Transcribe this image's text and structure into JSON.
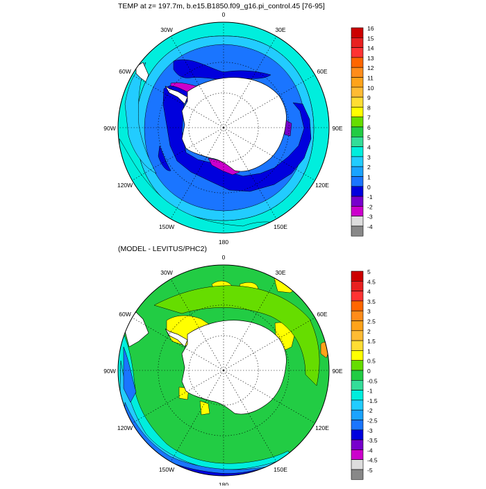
{
  "panel1": {
    "title": "TEMP at z= 197.7m, b.e15.B1850.f09_g16.pi_control.45 [76-95]",
    "lon_labels": [
      {
        "deg": 0,
        "text": "0"
      },
      {
        "deg": 30,
        "text": "30E"
      },
      {
        "deg": 60,
        "text": "60E"
      },
      {
        "deg": 90,
        "text": "90E"
      },
      {
        "deg": 120,
        "text": "120E"
      },
      {
        "deg": 150,
        "text": "150E"
      },
      {
        "deg": 180,
        "text": "180"
      },
      {
        "deg": -150,
        "text": "150W"
      },
      {
        "deg": -120,
        "text": "120W"
      },
      {
        "deg": -90,
        "text": "90W"
      },
      {
        "deg": -60,
        "text": "60W"
      },
      {
        "deg": -30,
        "text": "30W"
      }
    ],
    "colorbar": {
      "labels": [
        "16",
        "15",
        "14",
        "13",
        "12",
        "11",
        "10",
        "9",
        "8",
        "7",
        "6",
        "5",
        "4",
        "3",
        "2",
        "1",
        "0",
        "-1",
        "-2",
        "-3",
        "-4"
      ],
      "colors": [
        "#cc0000",
        "#e82020",
        "#ff3333",
        "#ff6600",
        "#ff8c1a",
        "#ffa31a",
        "#ffbb33",
        "#ffdd33",
        "#ffff00",
        "#66dd00",
        "#22cc44",
        "#33dd99",
        "#00eedd",
        "#22ccff",
        "#1aa3ff",
        "#1a75ff",
        "#0000dd",
        "#7700cc",
        "#cc00cc",
        "#dddddd",
        "#888888"
      ]
    }
  },
  "panel2": {
    "title": "(MODEL - LEVITUS/PHC2)",
    "lon_labels": [
      {
        "deg": 0,
        "text": "0"
      },
      {
        "deg": 30,
        "text": "30E"
      },
      {
        "deg": 60,
        "text": "60E"
      },
      {
        "deg": 90,
        "text": "90E"
      },
      {
        "deg": 120,
        "text": "120E"
      },
      {
        "deg": 150,
        "text": "150E"
      },
      {
        "deg": 180,
        "text": "180"
      },
      {
        "deg": -150,
        "text": "150W"
      },
      {
        "deg": -120,
        "text": "120W"
      },
      {
        "deg": -90,
        "text": "90W"
      },
      {
        "deg": -60,
        "text": "60W"
      },
      {
        "deg": -30,
        "text": "30W"
      }
    ],
    "colorbar": {
      "labels": [
        "5",
        "4.5",
        "4",
        "3.5",
        "3",
        "2.5",
        "2",
        "1.5",
        "1",
        "0.5",
        "0",
        "-0.5",
        "-1",
        "-1.5",
        "-2",
        "-2.5",
        "-3",
        "-3.5",
        "-4",
        "-4.5",
        "-5"
      ],
      "colors": [
        "#cc0000",
        "#e82020",
        "#ff3333",
        "#ff6600",
        "#ff8c1a",
        "#ffa31a",
        "#ffbb33",
        "#ffdd33",
        "#ffff00",
        "#66dd00",
        "#22cc44",
        "#33dd99",
        "#00eedd",
        "#22ccff",
        "#1aa3ff",
        "#1a75ff",
        "#0000dd",
        "#7700cc",
        "#cc00cc",
        "#dddddd",
        "#888888"
      ]
    }
  }
}
